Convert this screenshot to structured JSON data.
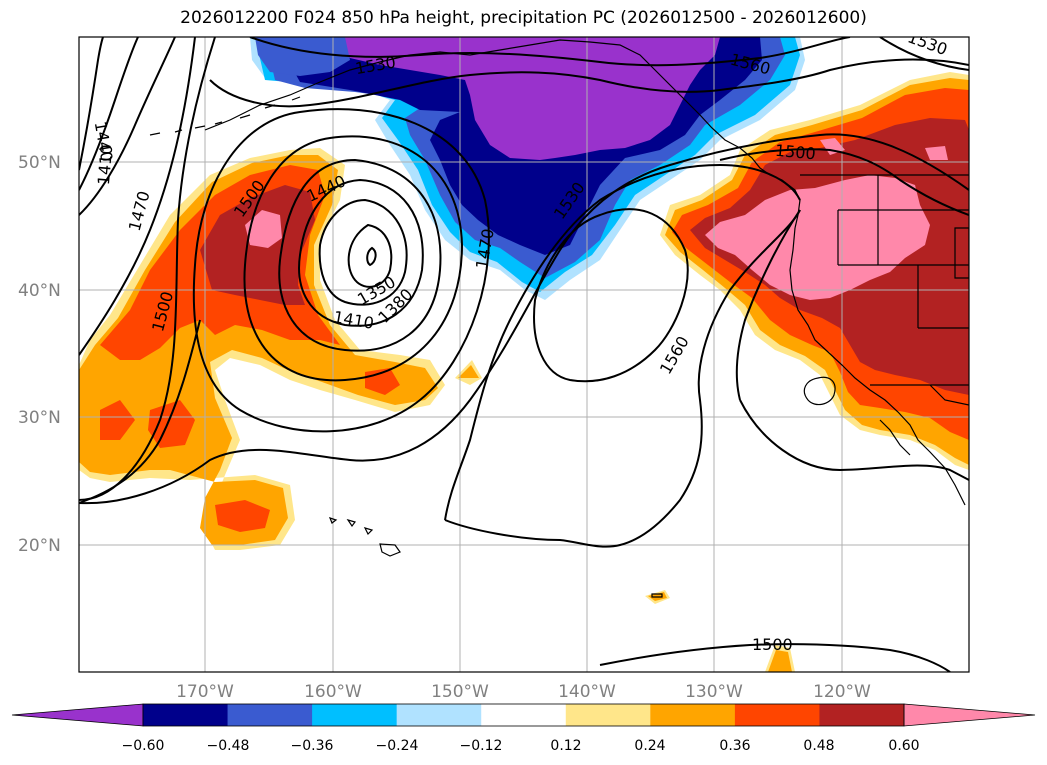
{
  "title": "2026012200 F024 850 hPa height, precipitation PC (2026012500 - 2026012600)",
  "map": {
    "lat_labels": [
      "50°N",
      "40°N",
      "30°N",
      "20°N"
    ],
    "lon_labels": [
      "170°W",
      "160°W",
      "150°W",
      "140°W",
      "130°W",
      "120°W"
    ],
    "contour_labels": [
      "1530",
      "1560",
      "1440",
      "1410",
      "1470",
      "1500",
      "1500",
      "1500",
      "1440",
      "1350",
      "1380",
      "1410",
      "1470",
      "1530",
      "1560",
      "1500",
      "1530",
      "1410",
      "1470",
      "1500"
    ]
  },
  "colorbar": {
    "ticks": [
      "−0.60",
      "−0.48",
      "−0.36",
      "−0.24",
      "−0.12",
      "0.12",
      "0.24",
      "0.36",
      "0.48",
      "0.60"
    ],
    "colors": [
      "#9932cc",
      "#00008b",
      "#3a5bd0",
      "#00bfff",
      "#b0e2ff",
      "#ffffff",
      "#ffe68a",
      "#ffa500",
      "#ff4500",
      "#b22222",
      "#ff88aa"
    ]
  }
}
